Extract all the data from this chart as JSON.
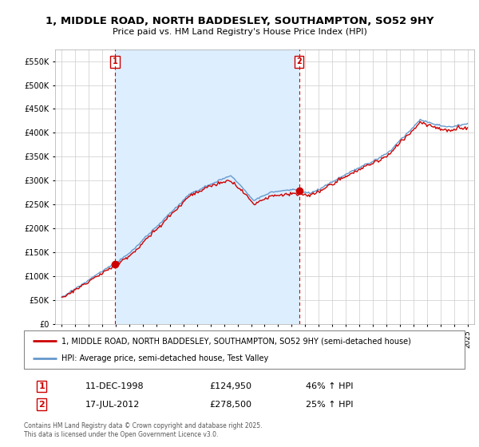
{
  "title": "1, MIDDLE ROAD, NORTH BADDESLEY, SOUTHAMPTON, SO52 9HY",
  "subtitle": "Price paid vs. HM Land Registry's House Price Index (HPI)",
  "bg_color": "#ffffff",
  "plot_bg_color": "#ffffff",
  "grid_color": "#cccccc",
  "red_line_color": "#cc0000",
  "blue_line_color": "#6699cc",
  "shade_color": "#ddeeff",
  "vline_color": "#cc0000",
  "sale1": {
    "date_num": 1998.94,
    "label": "1",
    "price": 124950,
    "hpi_pct": "46% ↑ HPI",
    "date_str": "11-DEC-1998"
  },
  "sale2": {
    "date_num": 2012.54,
    "label": "2",
    "price": 278500,
    "hpi_pct": "25% ↑ HPI",
    "date_str": "17-JUL-2012"
  },
  "legend_line1": "1, MIDDLE ROAD, NORTH BADDESLEY, SOUTHAMPTON, SO52 9HY (semi-detached house)",
  "legend_line2": "HPI: Average price, semi-detached house, Test Valley",
  "copyright_text": "Contains HM Land Registry data © Crown copyright and database right 2025.\nThis data is licensed under the Open Government Licence v3.0.",
  "ylim": [
    0,
    575000
  ],
  "yticks": [
    0,
    50000,
    100000,
    150000,
    200000,
    250000,
    300000,
    350000,
    400000,
    450000,
    500000,
    550000
  ],
  "xlim": [
    1994.5,
    2025.5
  ],
  "xticks": [
    1995,
    1996,
    1997,
    1998,
    1999,
    2000,
    2001,
    2002,
    2003,
    2004,
    2005,
    2006,
    2007,
    2008,
    2009,
    2010,
    2011,
    2012,
    2013,
    2014,
    2015,
    2016,
    2017,
    2018,
    2019,
    2020,
    2021,
    2022,
    2023,
    2024,
    2025
  ]
}
